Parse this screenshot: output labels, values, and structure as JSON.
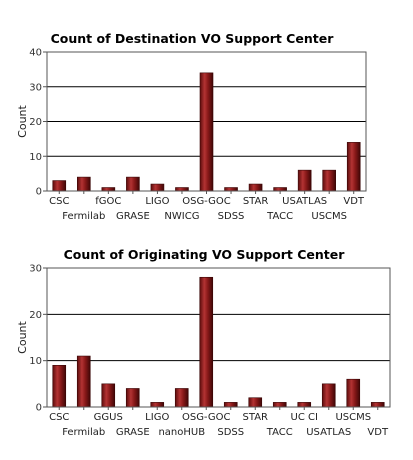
{
  "chart_data": [
    {
      "type": "bar",
      "title": "Count of Destination VO Support Center",
      "xlabel": "",
      "ylabel": "Count",
      "ylim": [
        0,
        40
      ],
      "yticks": [
        0,
        10,
        20,
        30,
        40
      ],
      "grid": true,
      "categories": [
        "CSC",
        "Fermilab",
        "fGOC",
        "GRASE",
        "LIGO",
        "NWICG",
        "OSG-GOC",
        "SDSS",
        "STAR",
        "TACC",
        "USATLAS",
        "USCMS",
        "VDT"
      ],
      "values": [
        3,
        4,
        1,
        4,
        2,
        1,
        34,
        1,
        2,
        1,
        6,
        6,
        14
      ]
    },
    {
      "type": "bar",
      "title": "Count of Originating VO Support Center",
      "xlabel": "",
      "ylabel": "Count",
      "ylim": [
        0,
        30
      ],
      "yticks": [
        0,
        10,
        20,
        30
      ],
      "grid": true,
      "categories": [
        "CSC",
        "Fermilab",
        "GGUS",
        "GRASE",
        "LIGO",
        "nanoHUB",
        "OSG-GOC",
        "SDSS",
        "STAR",
        "TACC",
        "UC CI",
        "USATLAS",
        "USCMS",
        "VDT"
      ],
      "values": [
        9,
        11,
        5,
        4,
        1,
        4,
        28,
        1,
        2,
        1,
        1,
        5,
        6,
        1
      ]
    }
  ],
  "colors": {
    "bar_fill": "#8b1a1a",
    "bar_edge": "#3a0606",
    "grid": "#000000"
  }
}
